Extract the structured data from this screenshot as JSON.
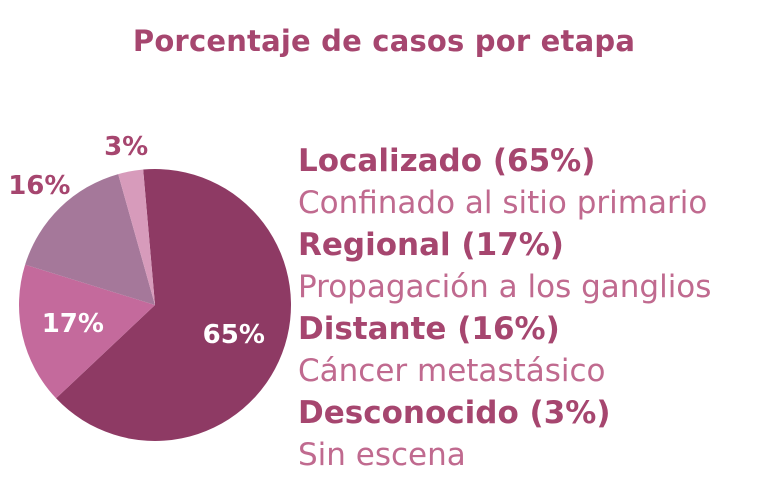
{
  "chart_data": {
    "type": "pie",
    "title": "Porcentaje de casos por etapa",
    "slices": [
      {
        "label": "Localizado (65%)",
        "description": "Confinado al sitio primario",
        "value": 65,
        "data_label": "65%",
        "color": "#8e3a64"
      },
      {
        "label": "Regional (17%)",
        "description": "Propagación a los ganglios",
        "value": 17,
        "data_label": "17%",
        "color": "#c46a9c"
      },
      {
        "label": "Distante (16%)",
        "description": "Cáncer metastásico",
        "value": 16,
        "data_label": "16%",
        "color": "#a5789a"
      },
      {
        "label": "Desconocido (3%)",
        "description": "Sin escena",
        "value": 3,
        "data_label": "3%",
        "color": "#d79bbb"
      }
    ],
    "legend_position": "right",
    "colors": {
      "title": "#a6466f",
      "legend_heading": "#a6466f",
      "legend_text": "#c06a8f"
    }
  }
}
